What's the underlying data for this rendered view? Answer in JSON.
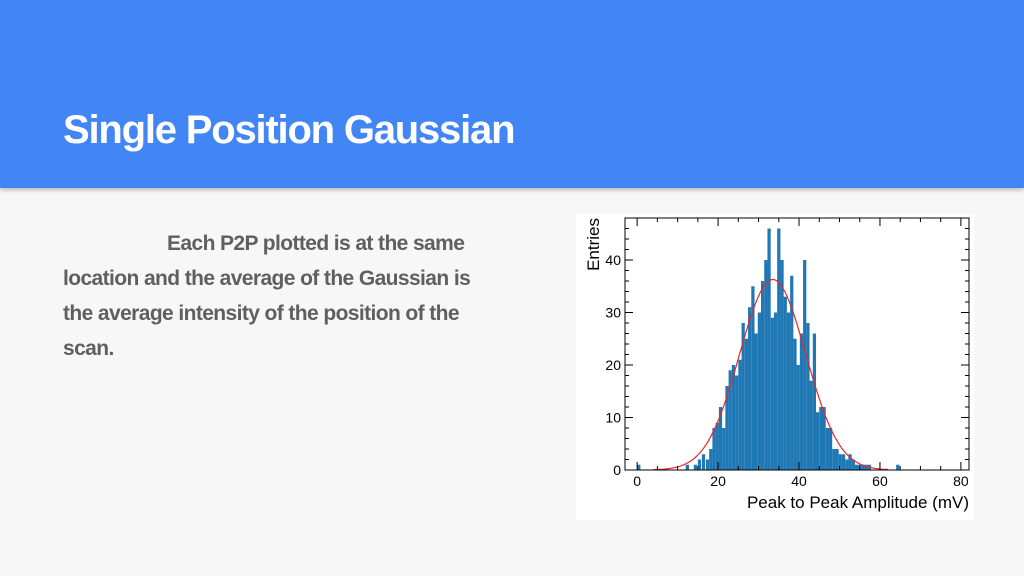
{
  "slide": {
    "title": "Single Position Gaussian",
    "body_lines": [
      "Each P2P plotted is at the same",
      "location and the average of the Gaussian is",
      "the average intensity of the position of the",
      "scan."
    ]
  },
  "colors": {
    "header_bg": "#4285f4",
    "histogram_fill": "#1f77b4",
    "fit_curve": "#e8262b"
  },
  "chart_data": {
    "type": "bar",
    "subtype": "histogram-with-gaussian-fit",
    "xlabel": "Peak to Peak Amplitude (mV)",
    "ylabel": "Entries",
    "xlim": [
      -3,
      82
    ],
    "ylim": [
      0,
      48
    ],
    "xticks": [
      0,
      20,
      40,
      60,
      80
    ],
    "yticks": [
      0,
      10,
      20,
      30,
      40
    ],
    "grid": false,
    "bin_width": 0.8,
    "bins_x": [
      0,
      12,
      13,
      14,
      15,
      16,
      17,
      17.8,
      18.6,
      19.4,
      20.2,
      21,
      21.8,
      22.6,
      23.4,
      24.2,
      25,
      25.8,
      26.6,
      27.4,
      28.2,
      29,
      29.8,
      30.6,
      31.4,
      32.2,
      33,
      33.8,
      34.6,
      35.4,
      36.2,
      37,
      37.8,
      38.6,
      39.4,
      40.2,
      41,
      41.8,
      42.6,
      43.4,
      44.2,
      45,
      45.8,
      46.6,
      47.4,
      48.2,
      49,
      49.8,
      50.6,
      51.4,
      52.2,
      53,
      53.8,
      54.6,
      55.4,
      56.2,
      57,
      57.8,
      64
    ],
    "bins_y": [
      1,
      1,
      0,
      1,
      2,
      3,
      2,
      4,
      8,
      9,
      12,
      8,
      16,
      19,
      20,
      18,
      21,
      28,
      25,
      31,
      35,
      26,
      30,
      36,
      40,
      46,
      29,
      30,
      46,
      40,
      33,
      30,
      37,
      25,
      20,
      26,
      40,
      28,
      17,
      26,
      11,
      12,
      12,
      8,
      8,
      4,
      4,
      3,
      3,
      2,
      3,
      2,
      1,
      1,
      1,
      1,
      1,
      0,
      1
    ],
    "fit": {
      "function": "gaussian",
      "amplitude": 36.3,
      "mean": 33.5,
      "sigma": 8.2
    }
  }
}
